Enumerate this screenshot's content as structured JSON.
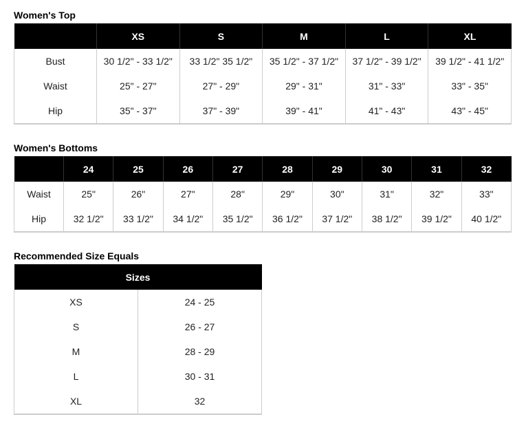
{
  "tops": {
    "title": "Women's Top",
    "columns": [
      "",
      "XS",
      "S",
      "M",
      "L",
      "XL"
    ],
    "rows": [
      [
        "Bust",
        "30 1/2\" - 33 1/2\"",
        "33 1/2\" 35 1/2\"",
        "35 1/2\" - 37 1/2\"",
        "37 1/2\" - 39 1/2\"",
        "39 1/2\" - 41 1/2\""
      ],
      [
        "Waist",
        "25\" - 27\"",
        "27\" - 29\"",
        "29\" - 31\"",
        "31\" - 33\"",
        "33\" - 35\""
      ],
      [
        "Hip",
        "35\" - 37\"",
        "37\" - 39\"",
        "39\" - 41\"",
        "41\" - 43\"",
        "43\" - 45\""
      ]
    ]
  },
  "bottoms": {
    "title": "Women's Bottoms",
    "columns": [
      "",
      "24",
      "25",
      "26",
      "27",
      "28",
      "29",
      "30",
      "31",
      "32"
    ],
    "rows": [
      [
        "Waist",
        "25\"",
        "26\"",
        "27\"",
        "28\"",
        "29\"",
        "30\"",
        "31\"",
        "32\"",
        "33\""
      ],
      [
        "Hip",
        "32 1/2\"",
        "33 1/2\"",
        "34 1/2\"",
        "35 1/2\"",
        "36 1/2\"",
        "37 1/2\"",
        "38 1/2\"",
        "39 1/2\"",
        "40 1/2\""
      ]
    ]
  },
  "recommended": {
    "title": "Recommended Size Equals",
    "header": "Sizes",
    "rows": [
      [
        "XS",
        "24 - 25"
      ],
      [
        "S",
        "26 - 27"
      ],
      [
        "M",
        "28 - 29"
      ],
      [
        "L",
        "30 - 31"
      ],
      [
        "XL",
        "32"
      ]
    ]
  }
}
